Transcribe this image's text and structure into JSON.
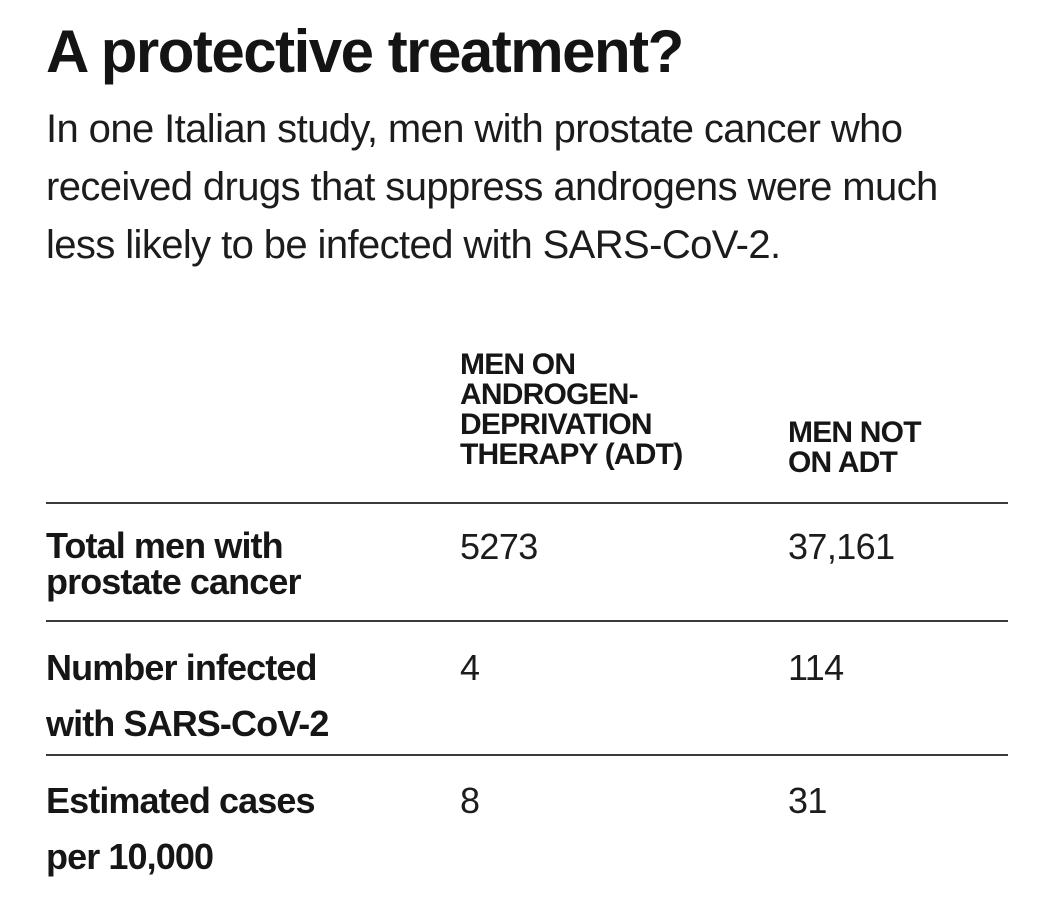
{
  "chart_data": {
    "type": "table",
    "title": "A protective treatment?",
    "subtitle": "In one Italian study, men with prostate cancer who received drugs that suppress androgens were much less likely to be infected with SARS-CoV-2.",
    "columns": [
      "MEN ON\nANDROGEN-\nDEPRIVATION\nTHERAPY (ADT)",
      "MEN NOT\nON ADT"
    ],
    "rows": [
      {
        "label": "Total men with\nprostate cancer",
        "values": [
          "5273",
          "37,161"
        ]
      },
      {
        "label": "Number infected\nwith SARS-CoV-2",
        "values": [
          "4",
          "114"
        ]
      },
      {
        "label": "Estimated cases\nper 10,000",
        "values": [
          "8",
          "31"
        ]
      }
    ]
  }
}
